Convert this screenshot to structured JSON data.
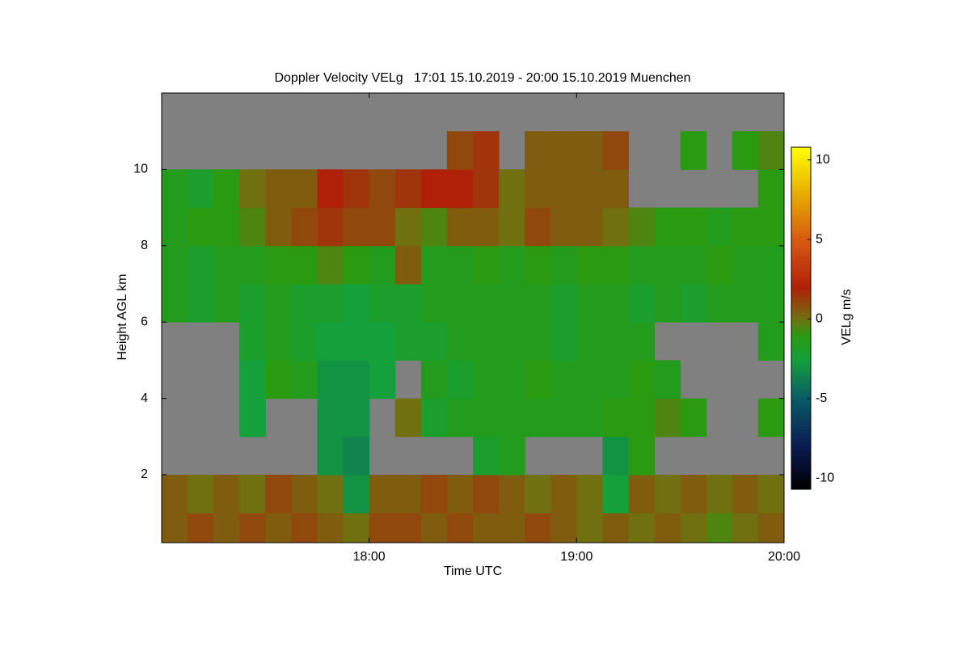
{
  "chart_data": {
    "type": "heatmap",
    "title": "Doppler Velocity VELg   17:01 15.10.2019 - 20:00 15.10.2019 Muenchen",
    "xlabel": "Time UTC",
    "ylabel": "Height AGL km",
    "colorbar_label": "VELg m/s",
    "xlim": [
      17.0,
      20.0
    ],
    "ylim": [
      0.22,
      12
    ],
    "xticks": [
      {
        "value": 18,
        "label": "18:00"
      },
      {
        "value": 19,
        "label": "19:00"
      },
      {
        "value": 20,
        "label": "20:00"
      }
    ],
    "yticks": [
      2,
      4,
      6,
      8,
      10
    ],
    "clim": [
      -10.7,
      10.8
    ],
    "cticks": [
      -10,
      -5,
      0,
      5,
      10
    ],
    "nan_color": "#808080",
    "colormap": [
      {
        "value": -10.7,
        "color": "#000000"
      },
      {
        "value": -8,
        "color": "#0a1a50"
      },
      {
        "value": -5,
        "color": "#0a5a66"
      },
      {
        "value": -2.5,
        "color": "#14a03a"
      },
      {
        "value": -1,
        "color": "#2a9a10"
      },
      {
        "value": 0,
        "color": "#707010"
      },
      {
        "value": 2,
        "color": "#b02008"
      },
      {
        "value": 5,
        "color": "#d85a10"
      },
      {
        "value": 8,
        "color": "#e8b000"
      },
      {
        "value": 10.8,
        "color": "#ffff00"
      }
    ],
    "x_bins": [
      17,
      17.125,
      17.25,
      17.375,
      17.5,
      17.625,
      17.75,
      17.875,
      18,
      18.125,
      18.25,
      18.375,
      18.5,
      18.625,
      18.75,
      18.875,
      19,
      19.125,
      19.25,
      19.375,
      19.5,
      19.625,
      19.75,
      19.875,
      20
    ],
    "y_bins": [
      0.22,
      1,
      2,
      3,
      4,
      5,
      6,
      7,
      8,
      9,
      10,
      11,
      12
    ],
    "values": [
      [
        0.5,
        1,
        0.5,
        1,
        0.5,
        1,
        0.5,
        0,
        1,
        1,
        0.5,
        1,
        0.5,
        0.5,
        1,
        0.5,
        0,
        0.5,
        0,
        0.5,
        0,
        -0.5,
        0,
        0.5
      ],
      [
        0.5,
        0,
        0.5,
        0,
        1,
        0.5,
        0,
        -3,
        0.5,
        0.5,
        1,
        0.5,
        1,
        0.5,
        0,
        0.5,
        0,
        -2.5,
        0.5,
        0,
        0.5,
        0,
        0.5,
        0
      ],
      [
        null,
        null,
        null,
        null,
        null,
        null,
        -3,
        -3.5,
        null,
        null,
        null,
        null,
        -2,
        -1.5,
        null,
        null,
        null,
        -3,
        -1,
        null,
        null,
        null,
        null,
        null
      ],
      [
        null,
        null,
        null,
        -2.5,
        null,
        null,
        -3,
        -3,
        null,
        0,
        -2,
        -1.5,
        -1.5,
        -1.5,
        -1.5,
        -1.5,
        -1.5,
        -1,
        -1,
        -0.5,
        -1,
        null,
        null,
        -1
      ],
      [
        null,
        null,
        null,
        -2.5,
        -1,
        -1.5,
        -3,
        -3,
        -2.5,
        null,
        -1.5,
        -2,
        -1.5,
        -1.5,
        -1,
        -1.5,
        -1.5,
        -1.5,
        -1,
        -1.5,
        null,
        null,
        null,
        null
      ],
      [
        null,
        null,
        null,
        -2,
        -1.5,
        -2,
        -2.5,
        -2.5,
        -2.5,
        -2,
        -2,
        -1.5,
        -1.5,
        -1.5,
        -1.5,
        -2,
        -1.5,
        -1.5,
        -1.5,
        null,
        null,
        null,
        null,
        -1.5
      ],
      [
        -1.5,
        -2,
        -1.5,
        -2,
        -1.5,
        -2,
        -2,
        -2.5,
        -2,
        -2,
        -1.5,
        -1.5,
        -1.5,
        -1.5,
        -1.5,
        -2,
        -1.5,
        -1.5,
        -2,
        -1.5,
        -2,
        -1.5,
        -1.5,
        -1.5
      ],
      [
        -1.5,
        -2,
        -1.5,
        -1.5,
        -1,
        -1,
        -0.5,
        -1,
        -1.5,
        0.5,
        -1.5,
        -1.5,
        -1,
        -1.5,
        -1,
        -1.5,
        -1,
        -1,
        -1.5,
        -1.5,
        -1.5,
        -1,
        -1.5,
        -1.5
      ],
      [
        -1.5,
        -1,
        -1,
        -0.5,
        0.5,
        1,
        1.5,
        1,
        1,
        0,
        -0.5,
        0.5,
        0.5,
        0,
        1,
        0.5,
        0.5,
        0,
        -0.5,
        -1,
        -1,
        -1.5,
        -1,
        -1
      ],
      [
        -1.5,
        -2,
        -1,
        0,
        0.5,
        0.5,
        2,
        1.5,
        1,
        1.5,
        2,
        2,
        1.5,
        0,
        0.5,
        0.5,
        0.5,
        0.5,
        null,
        null,
        null,
        null,
        null,
        -1
      ],
      [
        null,
        null,
        null,
        null,
        null,
        null,
        null,
        null,
        null,
        null,
        null,
        1,
        1.5,
        null,
        0.5,
        0.5,
        0.5,
        1,
        null,
        null,
        -1,
        null,
        -1,
        -0.5
      ],
      [
        null,
        null,
        null,
        null,
        null,
        null,
        null,
        null,
        null,
        null,
        null,
        null,
        null,
        null,
        null,
        null,
        null,
        null,
        null,
        null,
        null,
        null,
        null,
        null
      ]
    ]
  }
}
